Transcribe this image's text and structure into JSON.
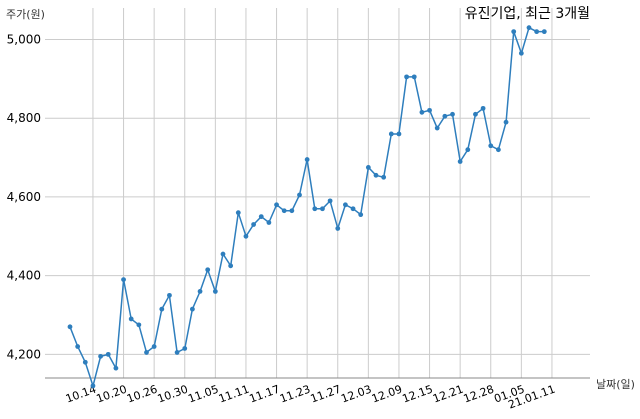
{
  "chart_data": {
    "type": "line",
    "title": "유진기업, 최근 3개월",
    "xlabel": "날짜(일)",
    "ylabel": "주가(원)",
    "ylim": [
      4140,
      5080
    ],
    "grid": true,
    "color": "#2e7ebd",
    "x_ticks": [
      {
        "index": 3,
        "label": "10.14"
      },
      {
        "index": 7,
        "label": "10.20"
      },
      {
        "index": 11,
        "label": "10.26"
      },
      {
        "index": 15,
        "label": "10.30"
      },
      {
        "index": 19,
        "label": "11.05"
      },
      {
        "index": 23,
        "label": "11.11"
      },
      {
        "index": 27,
        "label": "11.17"
      },
      {
        "index": 31,
        "label": "11.23"
      },
      {
        "index": 35,
        "label": "11.27"
      },
      {
        "index": 39,
        "label": "12.03"
      },
      {
        "index": 43,
        "label": "12.09"
      },
      {
        "index": 47,
        "label": "12.15"
      },
      {
        "index": 51,
        "label": "12.21"
      },
      {
        "index": 55,
        "label": "12.28"
      },
      {
        "index": 59,
        "label": "01.05"
      },
      {
        "index": 63,
        "label": "21.01.11"
      }
    ],
    "y_ticks": [
      {
        "value": 4200,
        "label": "4,200"
      },
      {
        "value": 4400,
        "label": "4,400"
      },
      {
        "value": 4600,
        "label": "4,600"
      },
      {
        "value": 4800,
        "label": "4,800"
      },
      {
        "value": 5000,
        "label": "5,000"
      }
    ],
    "values": [
      4270,
      4220,
      4180,
      4120,
      4195,
      4200,
      4165,
      4390,
      4290,
      4275,
      4205,
      4220,
      4315,
      4350,
      4205,
      4215,
      4315,
      4360,
      4415,
      4360,
      4455,
      4425,
      4560,
      4500,
      4530,
      4550,
      4535,
      4580,
      4565,
      4565,
      4605,
      4695,
      4570,
      4570,
      4590,
      4520,
      4580,
      4570,
      4555,
      4675,
      4655,
      4650,
      4760,
      4760,
      4905,
      4905,
      4815,
      4820,
      4775,
      4805,
      4810,
      4690,
      4720,
      4810,
      4825,
      4730,
      4720,
      4790,
      5020,
      4965,
      5030,
      5020,
      5020
    ]
  }
}
